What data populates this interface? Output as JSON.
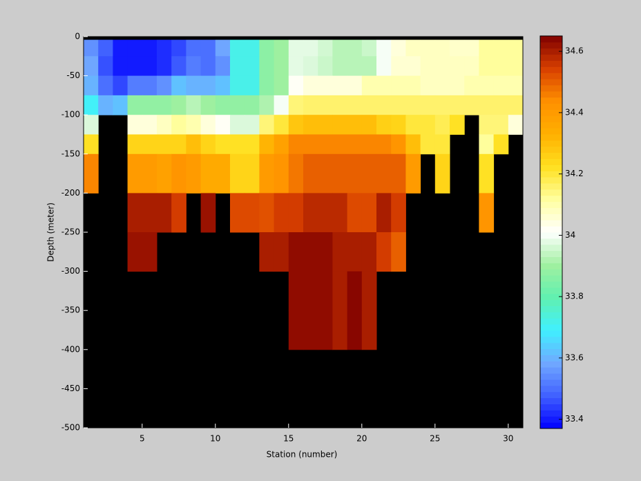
{
  "chart_data": {
    "type": "heatmap",
    "xlabel": "Station (number)",
    "ylabel": "Depth (meter)",
    "xlim": [
      1,
      31
    ],
    "ylim": [
      -500,
      0
    ],
    "xticks": [
      5,
      10,
      15,
      20,
      25,
      30
    ],
    "yticks": [
      0,
      -50,
      -100,
      -150,
      -200,
      -250,
      -300,
      -350,
      -400,
      -450,
      -500
    ],
    "x_edges": [
      1,
      2,
      3,
      4,
      5,
      6,
      7,
      8,
      9,
      10,
      11,
      12,
      13,
      14,
      15,
      16,
      17,
      18,
      19,
      20,
      21,
      22,
      23,
      24,
      25,
      26,
      27,
      28,
      29,
      30,
      31
    ],
    "y_edges": [
      -4,
      -25,
      -50,
      -75,
      -100,
      -125,
      -150,
      -200,
      -250,
      -300,
      -350,
      -400
    ],
    "clim": [
      33.37,
      34.65
    ],
    "cticks": [
      33.4,
      33.6,
      33.8,
      34,
      34.2,
      34.4,
      34.6
    ],
    "colormap": [
      "#0000ff",
      "#4060ff",
      "#70a8ff",
      "#40f0ff",
      "#60f0b0",
      "#a0f0a0",
      "#ffffff",
      "#ffffa0",
      "#ffe020",
      "#ffb000",
      "#ff9000",
      "#d84000",
      "#800000"
    ],
    "background": "#000000",
    "values": [
      [
        33.55,
        33.48,
        33.4,
        33.4,
        33.4,
        33.42,
        33.45,
        33.5,
        33.5,
        33.58,
        33.72,
        33.72,
        33.87,
        33.9,
        33.98,
        33.98,
        33.96,
        33.93,
        33.93,
        33.95,
        34.0,
        34.05,
        34.08,
        34.08,
        34.08,
        34.07,
        34.07,
        34.12,
        34.12,
        34.12
      ],
      [
        33.58,
        33.46,
        33.4,
        33.4,
        33.4,
        33.42,
        33.47,
        33.52,
        33.5,
        33.55,
        33.72,
        33.72,
        33.87,
        33.9,
        33.98,
        33.97,
        33.95,
        33.93,
        33.93,
        33.93,
        34.0,
        34.06,
        34.06,
        34.08,
        34.08,
        34.08,
        34.08,
        34.12,
        34.12,
        34.12
      ],
      [
        33.6,
        33.5,
        33.45,
        33.52,
        33.52,
        33.55,
        33.62,
        33.6,
        33.6,
        33.62,
        33.72,
        33.72,
        33.87,
        33.9,
        34.02,
        34.05,
        34.05,
        34.05,
        34.05,
        34.1,
        34.1,
        34.1,
        34.1,
        34.08,
        34.08,
        34.08,
        34.1,
        34.1,
        34.1,
        34.1
      ],
      [
        33.7,
        33.6,
        33.62,
        33.88,
        33.88,
        33.88,
        33.9,
        33.93,
        33.9,
        33.88,
        33.88,
        33.88,
        33.92,
        34.0,
        34.15,
        34.16,
        34.16,
        34.16,
        34.16,
        34.16,
        34.16,
        34.16,
        34.16,
        34.16,
        34.16,
        34.16,
        34.16,
        34.16,
        34.16,
        34.16
      ],
      [
        33.97,
        null,
        null,
        34.05,
        34.05,
        34.08,
        34.12,
        34.1,
        34.05,
        34.02,
        33.97,
        33.97,
        34.15,
        34.2,
        34.28,
        34.3,
        34.3,
        34.3,
        34.3,
        34.3,
        34.26,
        34.25,
        34.2,
        34.2,
        34.18,
        34.22,
        null,
        34.15,
        34.15,
        34.05
      ],
      [
        34.22,
        null,
        null,
        34.25,
        34.25,
        34.25,
        34.25,
        34.3,
        34.25,
        34.22,
        34.22,
        34.22,
        34.32,
        34.38,
        34.45,
        34.45,
        34.45,
        34.45,
        34.45,
        34.45,
        34.45,
        34.42,
        34.3,
        34.2,
        34.2,
        null,
        null,
        34.12,
        34.22,
        null
      ],
      [
        34.45,
        null,
        null,
        34.4,
        34.4,
        34.38,
        34.42,
        34.4,
        34.35,
        34.35,
        34.25,
        34.25,
        34.4,
        34.42,
        34.47,
        34.5,
        34.5,
        34.5,
        34.5,
        34.5,
        34.5,
        34.5,
        34.4,
        null,
        34.25,
        null,
        null,
        34.22,
        null,
        null
      ],
      [
        null,
        null,
        null,
        34.6,
        34.6,
        34.6,
        34.55,
        null,
        34.62,
        null,
        34.53,
        34.53,
        34.52,
        34.55,
        34.55,
        34.58,
        34.58,
        34.58,
        34.53,
        34.53,
        34.6,
        34.55,
        null,
        null,
        null,
        null,
        null,
        34.42,
        null,
        null
      ],
      [
        null,
        null,
        null,
        34.62,
        34.62,
        null,
        null,
        null,
        null,
        null,
        null,
        null,
        34.6,
        34.6,
        34.63,
        34.63,
        34.63,
        34.6,
        34.6,
        34.6,
        34.55,
        34.5,
        null,
        null,
        null,
        null,
        null,
        null,
        null,
        null
      ],
      [
        null,
        null,
        null,
        null,
        null,
        null,
        null,
        null,
        null,
        null,
        null,
        null,
        null,
        null,
        34.63,
        34.63,
        34.63,
        34.6,
        34.64,
        34.6,
        null,
        null,
        null,
        null,
        null,
        null,
        null,
        null,
        null,
        null
      ],
      [
        null,
        null,
        null,
        null,
        null,
        null,
        null,
        null,
        null,
        null,
        null,
        null,
        null,
        null,
        34.63,
        34.63,
        34.63,
        34.6,
        34.64,
        34.6,
        null,
        null,
        null,
        null,
        null,
        null,
        null,
        null,
        null,
        null
      ]
    ]
  }
}
